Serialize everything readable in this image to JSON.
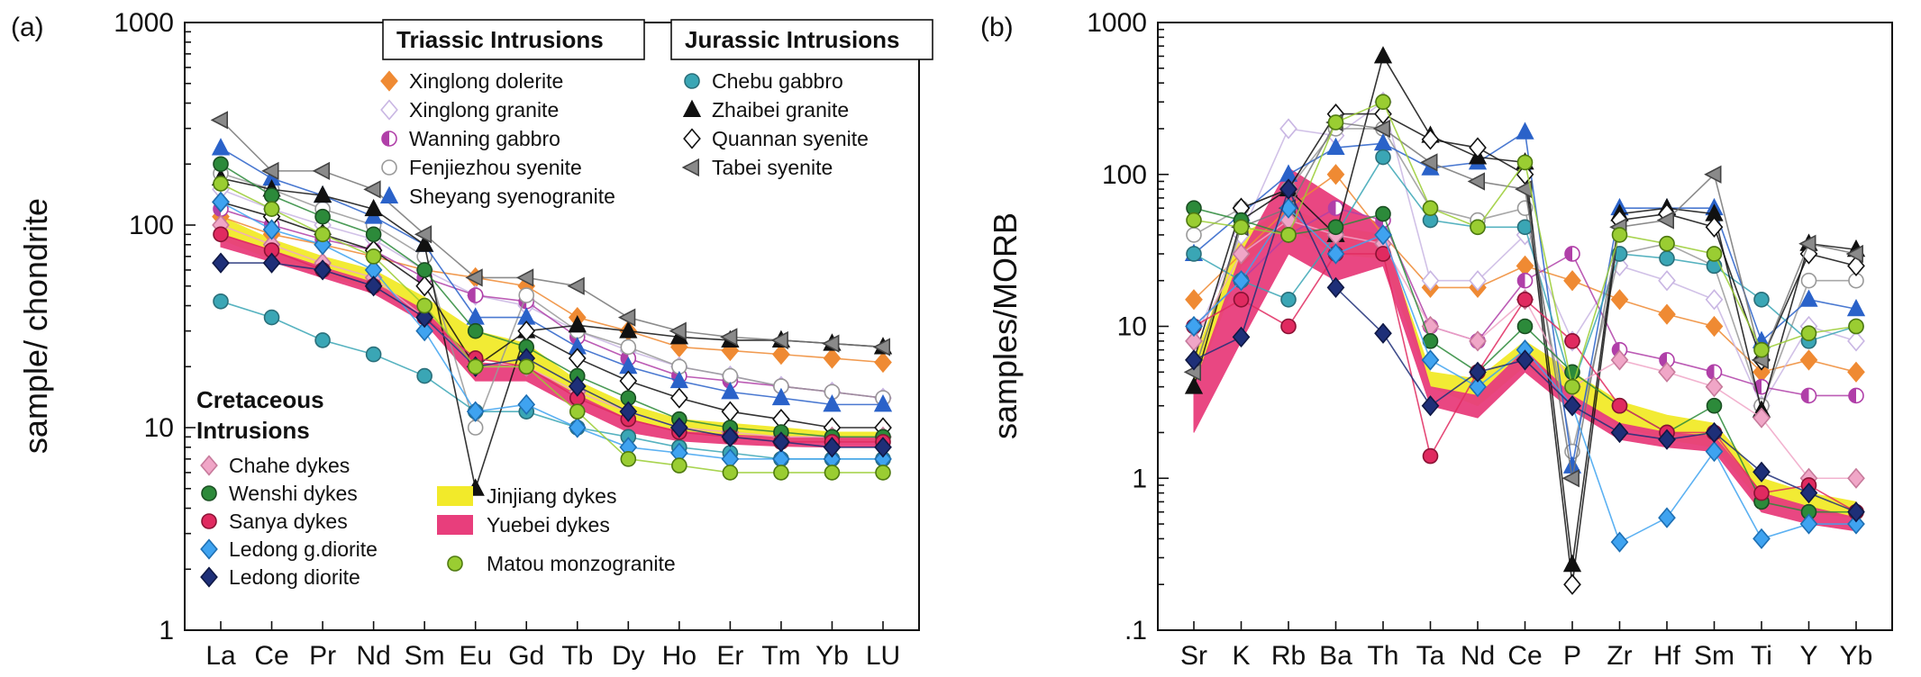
{
  "panel_labels": {
    "a": "(a)",
    "b": "(b)"
  },
  "chart_data": [
    {
      "type": "line",
      "ylabel": "sample/ chondrite",
      "yscale": "log",
      "ylim": [
        1,
        1000
      ],
      "y_ticks": [
        "1",
        "10",
        "100",
        "1000"
      ],
      "categories": [
        "La",
        "Ce",
        "Pr",
        "Nd",
        "Sm",
        "Eu",
        "Gd",
        "Tb",
        "Dy",
        "Ho",
        "Er",
        "Tm",
        "Yb",
        "LU"
      ],
      "legend": {
        "triassic_title": "Triassic Intrusions",
        "triassic": [
          "Xinglong dolerite",
          "Xinglong granite",
          "Wanning gabbro",
          "Fenjiezhou syenite",
          "Sheyang syenogranite"
        ],
        "jurassic_title": "Jurassic Intrusions",
        "jurassic": [
          "Chebu gabbro",
          "Zhaibei granite",
          "Quannan syenite",
          "Tabei syenite"
        ],
        "cretaceous_title_1": "Cretaceous",
        "cretaceous_title_2": "Intrusions",
        "cretaceous": [
          "Chahe dykes",
          "Wenshi dykes",
          "Sanya dykes",
          "Ledong g.diorite",
          "Ledong diorite"
        ],
        "fields": [
          "Jinjiang dykes",
          "Yuebei dykes",
          "Matou monzogranite"
        ]
      },
      "series": [
        {
          "name": "Xinglong dolerite",
          "color": "#ef8a33",
          "values": [
            110,
            90,
            80,
            70,
            60,
            55,
            50,
            35,
            30,
            25,
            24,
            23,
            22,
            21
          ]
        },
        {
          "name": "Xinglong granite",
          "color": "#c9b6e3",
          "values": [
            150,
            120,
            100,
            85,
            60,
            45,
            40,
            30,
            24,
            20,
            18,
            16,
            15,
            14
          ]
        },
        {
          "name": "Wanning gabbro",
          "color": "#b03fa8",
          "values": [
            120,
            100,
            85,
            75,
            55,
            45,
            42,
            28,
            22,
            18,
            17,
            16,
            15,
            14
          ]
        },
        {
          "name": "Fenjiezhou syenite",
          "color": "#999999",
          "values": [
            180,
            150,
            120,
            100,
            70,
            10,
            45,
            30,
            25,
            20,
            18,
            16,
            15,
            14
          ]
        },
        {
          "name": "Sheyang syenogranite",
          "color": "#2a62c9",
          "values": [
            240,
            170,
            140,
            110,
            80,
            35,
            35,
            25,
            20,
            17,
            15,
            14,
            13,
            13
          ]
        },
        {
          "name": "Chebu gabbro",
          "color": "#3aa6b5",
          "values": [
            42,
            35,
            27,
            23,
            18,
            12,
            12,
            10,
            9,
            8,
            7.5,
            7,
            7,
            7
          ]
        },
        {
          "name": "Zhaibei granite",
          "color": "#111111",
          "values": [
            170,
            150,
            140,
            120,
            80,
            5,
            30,
            32,
            30,
            28,
            27,
            27,
            26,
            25
          ]
        },
        {
          "name": "Quannan syenite",
          "color": "#111111",
          "values": [
            130,
            110,
            90,
            75,
            50,
            20,
            30,
            22,
            17,
            14,
            12,
            11,
            10,
            10
          ]
        },
        {
          "name": "Tabei syenite",
          "color": "#777777",
          "values": [
            330,
            185,
            185,
            150,
            90,
            55,
            55,
            50,
            35,
            30,
            28,
            27,
            26,
            25
          ]
        },
        {
          "name": "Chahe dykes",
          "color": "#f0a6c7",
          "values": [
            100,
            80,
            65,
            55,
            35,
            20,
            20,
            15,
            12,
            10,
            9.5,
            9,
            9,
            9
          ]
        },
        {
          "name": "Wenshi dykes",
          "color": "#2c8a3a",
          "values": [
            200,
            140,
            110,
            90,
            60,
            30,
            25,
            18,
            14,
            11,
            10,
            9.5,
            9,
            9
          ]
        },
        {
          "name": "Sanya dykes",
          "color": "#e02a60",
          "values": [
            90,
            75,
            60,
            50,
            35,
            22,
            20,
            14,
            11,
            9.5,
            9,
            8.5,
            8.5,
            8.5
          ]
        },
        {
          "name": "Ledong g.diorite",
          "color": "#3fa3f0",
          "values": [
            130,
            95,
            80,
            60,
            30,
            12,
            13,
            10,
            8,
            7.5,
            7,
            7,
            7,
            7
          ]
        },
        {
          "name": "Ledong diorite",
          "color": "#1e2f78",
          "values": [
            65,
            65,
            60,
            50,
            35,
            20,
            22,
            16,
            12,
            10,
            9,
            8.5,
            8,
            8
          ]
        },
        {
          "name": "Matou monzogranite",
          "color": "#9acd32",
          "values": [
            160,
            120,
            90,
            70,
            40,
            20,
            20,
            12,
            7,
            6.5,
            6,
            6,
            6,
            6
          ]
        }
      ],
      "fields": [
        {
          "name": "Jinjiang dykes",
          "color": "#f2ea2a",
          "upper": [
            110,
            85,
            70,
            60,
            44,
            30,
            26,
            17,
            13,
            11,
            10.5,
            10,
            9.5,
            9.5
          ],
          "lower": [
            85,
            68,
            57,
            48,
            36,
            22,
            20,
            14,
            11,
            9.5,
            9,
            8.5,
            8.5,
            8.5
          ]
        },
        {
          "name": "Yuebei dykes",
          "color": "#e83e7c",
          "upper": [
            90,
            75,
            62,
            52,
            38,
            21,
            20,
            14.5,
            11,
            9.6,
            9.2,
            9,
            9,
            9
          ],
          "lower": [
            78,
            66,
            55,
            46,
            33,
            17,
            17,
            12.5,
            9.5,
            8.6,
            8.3,
            8.1,
            8,
            8
          ]
        }
      ]
    },
    {
      "type": "line",
      "ylabel": "samples/MORB",
      "yscale": "log",
      "ylim": [
        0.1,
        1000
      ],
      "y_ticks": [
        ".1",
        "1",
        "10",
        "100",
        "1000"
      ],
      "categories": [
        "Sr",
        "K",
        "Rb",
        "Ba",
        "Th",
        "Ta",
        "Nd",
        "Ce",
        "P",
        "Zr",
        "Hf",
        "Sm",
        "Ti",
        "Y",
        "Yb"
      ],
      "series": [
        {
          "name": "Xinglong dolerite",
          "color": "#ef8a33",
          "values": [
            15,
            30,
            60,
            100,
            40,
            18,
            18,
            25,
            20,
            15,
            12,
            10,
            5,
            6,
            5
          ]
        },
        {
          "name": "Xinglong granite",
          "color": "#c9b6e3",
          "values": [
            8,
            40,
            200,
            180,
            300,
            20,
            20,
            40,
            8,
            25,
            20,
            15,
            3,
            10,
            8
          ]
        },
        {
          "name": "Wanning gabbro",
          "color": "#b03fa8",
          "values": [
            10,
            20,
            40,
            60,
            50,
            10,
            8,
            20,
            30,
            7,
            6,
            5,
            4,
            3.5,
            3.5
          ]
        },
        {
          "name": "Fenjiezhou syenite",
          "color": "#999999",
          "values": [
            40,
            60,
            80,
            200,
            200,
            60,
            50,
            60,
            1.5,
            30,
            35,
            25,
            3,
            20,
            20
          ]
        },
        {
          "name": "Sheyang syenogranite",
          "color": "#2a62c9",
          "values": [
            30,
            55,
            100,
            150,
            160,
            110,
            120,
            190,
            1.2,
            60,
            60,
            60,
            8,
            15,
            13
          ]
        },
        {
          "name": "Chebu gabbro",
          "color": "#3aa6b5",
          "values": [
            30,
            20,
            15,
            40,
            130,
            50,
            45,
            45,
            4,
            30,
            28,
            25,
            15,
            8,
            10
          ]
        },
        {
          "name": "Zhaibei granite",
          "color": "#111111",
          "values": [
            4,
            50,
            80,
            40,
            600,
            180,
            130,
            120,
            0.27,
            55,
            60,
            55,
            2.8,
            35,
            32
          ]
        },
        {
          "name": "Quannan syenite",
          "color": "#111111",
          "values": [
            6,
            60,
            80,
            250,
            250,
            170,
            150,
            100,
            0.2,
            50,
            55,
            45,
            6,
            30,
            25
          ]
        },
        {
          "name": "Tabei syenite",
          "color": "#777777",
          "values": [
            5,
            45,
            60,
            220,
            200,
            120,
            90,
            80,
            1.0,
            45,
            50,
            100,
            6,
            35,
            30
          ]
        },
        {
          "name": "Chahe dykes",
          "color": "#f0a6c7",
          "values": [
            8,
            30,
            50,
            40,
            35,
            10,
            8,
            15,
            4,
            6,
            5,
            4,
            2.5,
            1,
            1
          ]
        },
        {
          "name": "Wenshi dykes",
          "color": "#2c8a3a",
          "values": [
            60,
            50,
            40,
            45,
            55,
            8,
            5,
            10,
            5,
            3,
            2,
            3,
            0.7,
            0.6,
            0.6
          ]
        },
        {
          "name": "Sanya dykes",
          "color": "#e02a60",
          "values": [
            10,
            15,
            10,
            30,
            30,
            1.4,
            5,
            15,
            8,
            3,
            2,
            2,
            0.8,
            0.9,
            0.6
          ]
        },
        {
          "name": "Ledong g.diorite",
          "color": "#3fa3f0",
          "values": [
            10,
            20,
            60,
            30,
            40,
            6,
            4,
            7,
            3,
            0.38,
            0.55,
            1.5,
            0.4,
            0.5,
            0.5
          ]
        },
        {
          "name": "Ledong diorite",
          "color": "#1e2f78",
          "values": [
            6,
            8.5,
            80,
            18,
            9,
            3,
            5,
            6,
            3,
            2,
            1.8,
            2,
            1.1,
            0.8,
            0.6
          ]
        },
        {
          "name": "Matou monzogranite",
          "color": "#9acd32",
          "values": [
            50,
            45,
            40,
            220,
            300,
            60,
            45,
            120,
            4,
            40,
            35,
            30,
            7,
            9,
            10
          ]
        }
      ],
      "fields": [
        {
          "name": "Jinjiang dykes",
          "color": "#f2ea2a",
          "upper": [
            6,
            40,
            60,
            45,
            40,
            5,
            4.5,
            8,
            5,
            3.2,
            2.6,
            2.3,
            1,
            0.8,
            0.7
          ],
          "lower": [
            4,
            25,
            45,
            30,
            28,
            4,
            3,
            5.5,
            3.5,
            2.2,
            1.8,
            1.6,
            0.7,
            0.6,
            0.55
          ]
        },
        {
          "name": "Yuebei dykes",
          "color": "#e83e7c",
          "upper": [
            4,
            30,
            110,
            70,
            45,
            4,
            3.5,
            7,
            3.5,
            2.3,
            2,
            1.9,
            0.8,
            0.65,
            0.55
          ],
          "lower": [
            2,
            8,
            30,
            20,
            25,
            3,
            2.5,
            5,
            2.8,
            1.8,
            1.6,
            1.5,
            0.6,
            0.5,
            0.45
          ]
        }
      ]
    }
  ]
}
